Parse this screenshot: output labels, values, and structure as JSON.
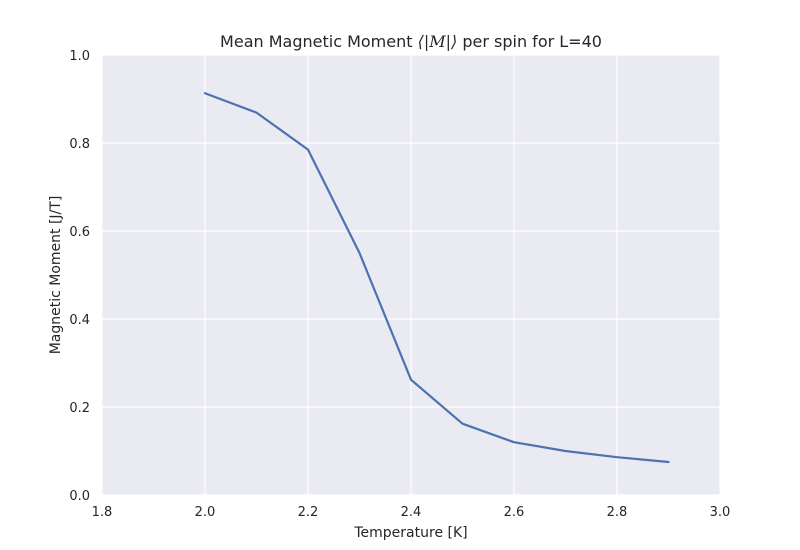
{
  "chart_data": {
    "type": "line",
    "title_prefix": "Mean Magnetic Moment ",
    "title_math": "⟨|M|⟩",
    "title_suffix": " per spin for L=40",
    "xlabel": "Temperature [K]",
    "ylabel": "Magnetic Moment [J/T]",
    "xlim": [
      1.8,
      3.0
    ],
    "ylim": [
      0.0,
      1.0
    ],
    "xticks": [
      "1.8",
      "2.0",
      "2.2",
      "2.4",
      "2.6",
      "2.8",
      "3.0"
    ],
    "yticks": [
      "0.0",
      "0.2",
      "0.4",
      "0.6",
      "0.8",
      "1.0"
    ],
    "grid": true,
    "series": [
      {
        "color": "#4c72b0",
        "x": [
          2.0,
          2.1,
          2.2,
          2.3,
          2.4,
          2.5,
          2.6,
          2.7,
          2.8,
          2.9
        ],
        "y": [
          0.913,
          0.869,
          0.785,
          0.55,
          0.262,
          0.162,
          0.12,
          0.1,
          0.086,
          0.075
        ]
      }
    ],
    "colors": {
      "plot_bg": "#eaeaf2",
      "grid": "#ffffff"
    }
  }
}
